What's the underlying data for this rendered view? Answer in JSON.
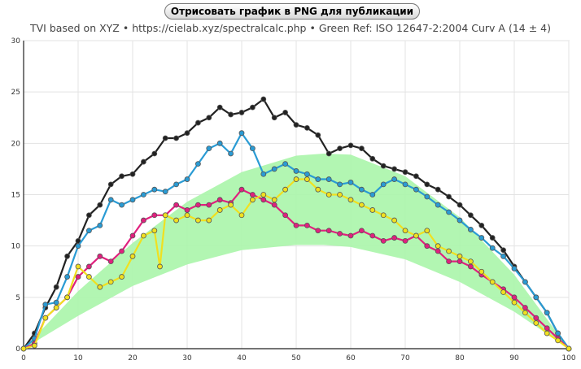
{
  "toolbar": {
    "export_label": "Отрисовать график в PNG для публикации"
  },
  "subtitle": {
    "part1": "TVI based on XYZ",
    "sep": "•",
    "part2": "https://cielab.xyz/spectralcalc.php",
    "part3": "Green Ref: ISO 12647-2:2004 Curv A (14 ± 4)"
  },
  "colors": {
    "black": "#222222",
    "cyan": "#2a9bd4",
    "magenta": "#e0207e",
    "yellow": "#f0e020",
    "band": "#aaf5aa"
  },
  "chart_data": {
    "type": "line",
    "title": "",
    "xlabel": "",
    "ylabel": "",
    "xlim": [
      0,
      100
    ],
    "ylim": [
      0,
      30
    ],
    "xticks": [
      0,
      10,
      20,
      30,
      40,
      50,
      60,
      70,
      80,
      90,
      100
    ],
    "yticks": [
      0,
      5,
      10,
      15,
      20,
      25,
      30
    ],
    "grid": true,
    "reference_band": {
      "x": [
        0,
        10,
        20,
        30,
        40,
        50,
        55,
        60,
        70,
        80,
        90,
        100
      ],
      "upper": [
        0,
        5.6,
        10.3,
        14.3,
        17.2,
        18.8,
        19.0,
        18.9,
        16.8,
        12.8,
        7.2,
        0
      ],
      "lower": [
        0,
        3.2,
        6.1,
        8.2,
        9.6,
        10.1,
        10.1,
        9.9,
        8.7,
        6.5,
        3.6,
        0
      ]
    },
    "series": [
      {
        "color": "black",
        "x": [
          0,
          2,
          4,
          6,
          8,
          10,
          12,
          14,
          16,
          18,
          20,
          22,
          24,
          26,
          28,
          30,
          32,
          34,
          36,
          38,
          40,
          42,
          44,
          46,
          48,
          50,
          52,
          54,
          56,
          58,
          60,
          62,
          64,
          66,
          68,
          70,
          72,
          74,
          76,
          78,
          80,
          82,
          84,
          86,
          88,
          90,
          92,
          94,
          96,
          98,
          100
        ],
        "y": [
          0,
          1.5,
          4.0,
          6.0,
          9.0,
          10.5,
          13.0,
          14.0,
          16.0,
          16.8,
          17.0,
          18.2,
          19.0,
          20.5,
          20.5,
          21.0,
          22.0,
          22.5,
          23.5,
          22.8,
          23.0,
          23.5,
          24.3,
          22.5,
          23.0,
          21.8,
          21.5,
          20.8,
          19.0,
          19.5,
          19.8,
          19.5,
          18.5,
          17.8,
          17.5,
          17.2,
          16.8,
          16.0,
          15.5,
          14.8,
          14.0,
          13.0,
          12.0,
          10.8,
          9.6,
          8.0,
          6.5,
          5.0,
          3.5,
          1.5,
          0
        ]
      },
      {
        "color": "cyan",
        "x": [
          0,
          2,
          4,
          6,
          8,
          10,
          12,
          14,
          16,
          18,
          20,
          22,
          24,
          26,
          28,
          30,
          32,
          34,
          36,
          38,
          40,
          42,
          44,
          46,
          48,
          50,
          52,
          54,
          56,
          58,
          60,
          62,
          64,
          66,
          68,
          70,
          72,
          74,
          76,
          78,
          80,
          82,
          84,
          86,
          88,
          90,
          92,
          94,
          96,
          98,
          100
        ],
        "y": [
          0,
          1.0,
          4.3,
          4.5,
          7.0,
          10.0,
          11.5,
          12.0,
          14.5,
          14.0,
          14.5,
          15.0,
          15.5,
          15.3,
          16.0,
          16.5,
          18.0,
          19.5,
          20.0,
          19.0,
          21.0,
          19.5,
          17.0,
          17.5,
          18.0,
          17.3,
          17.0,
          16.5,
          16.5,
          16.0,
          16.2,
          15.5,
          15.0,
          16.0,
          16.5,
          16.0,
          15.5,
          14.8,
          14.0,
          13.3,
          12.5,
          11.6,
          10.8,
          9.8,
          9.0,
          7.8,
          6.5,
          5.0,
          3.5,
          1.5,
          0
        ]
      },
      {
        "color": "magenta",
        "x": [
          0,
          2,
          4,
          6,
          8,
          10,
          12,
          14,
          16,
          18,
          20,
          22,
          24,
          26,
          28,
          30,
          32,
          34,
          36,
          38,
          40,
          42,
          44,
          46,
          48,
          50,
          52,
          54,
          56,
          58,
          60,
          62,
          64,
          66,
          68,
          70,
          72,
          74,
          76,
          78,
          80,
          82,
          84,
          86,
          88,
          90,
          92,
          94,
          96,
          98,
          100
        ],
        "y": [
          0,
          0.5,
          3.0,
          4.0,
          5.0,
          7.0,
          8.0,
          9.0,
          8.5,
          9.5,
          11.0,
          12.5,
          13.0,
          13.0,
          14.0,
          13.5,
          14.0,
          14.0,
          14.5,
          14.2,
          15.5,
          15.0,
          14.5,
          14.0,
          13.0,
          12.0,
          12.0,
          11.5,
          11.5,
          11.2,
          11.0,
          11.5,
          11.0,
          10.5,
          10.8,
          10.5,
          11.0,
          10.0,
          9.5,
          8.5,
          8.5,
          8.0,
          7.2,
          6.5,
          5.8,
          5.0,
          4.0,
          3.0,
          2.0,
          1.0,
          0
        ]
      },
      {
        "color": "yellow",
        "x": [
          0,
          2,
          4,
          6,
          8,
          10,
          12,
          14,
          16,
          18,
          20,
          22,
          24,
          25,
          26,
          28,
          30,
          32,
          34,
          36,
          38,
          40,
          42,
          44,
          46,
          48,
          50,
          52,
          54,
          56,
          58,
          60,
          62,
          64,
          66,
          68,
          70,
          72,
          74,
          76,
          78,
          80,
          82,
          84,
          86,
          88,
          90,
          92,
          94,
          96,
          98,
          100
        ],
        "y": [
          0,
          0.3,
          3.0,
          4.0,
          5.0,
          8.0,
          7.0,
          6.0,
          6.5,
          7.0,
          9.0,
          11.0,
          11.5,
          8.0,
          13.0,
          12.5,
          13.0,
          12.5,
          12.5,
          13.5,
          14.0,
          13.0,
          14.5,
          15.0,
          14.5,
          15.5,
          16.5,
          16.5,
          15.5,
          15.0,
          15.0,
          14.5,
          14.0,
          13.5,
          13.0,
          12.5,
          11.5,
          11.0,
          11.5,
          10.0,
          9.5,
          9.0,
          8.5,
          7.5,
          6.5,
          5.5,
          4.5,
          3.5,
          2.5,
          1.5,
          0.8,
          0
        ]
      }
    ]
  }
}
